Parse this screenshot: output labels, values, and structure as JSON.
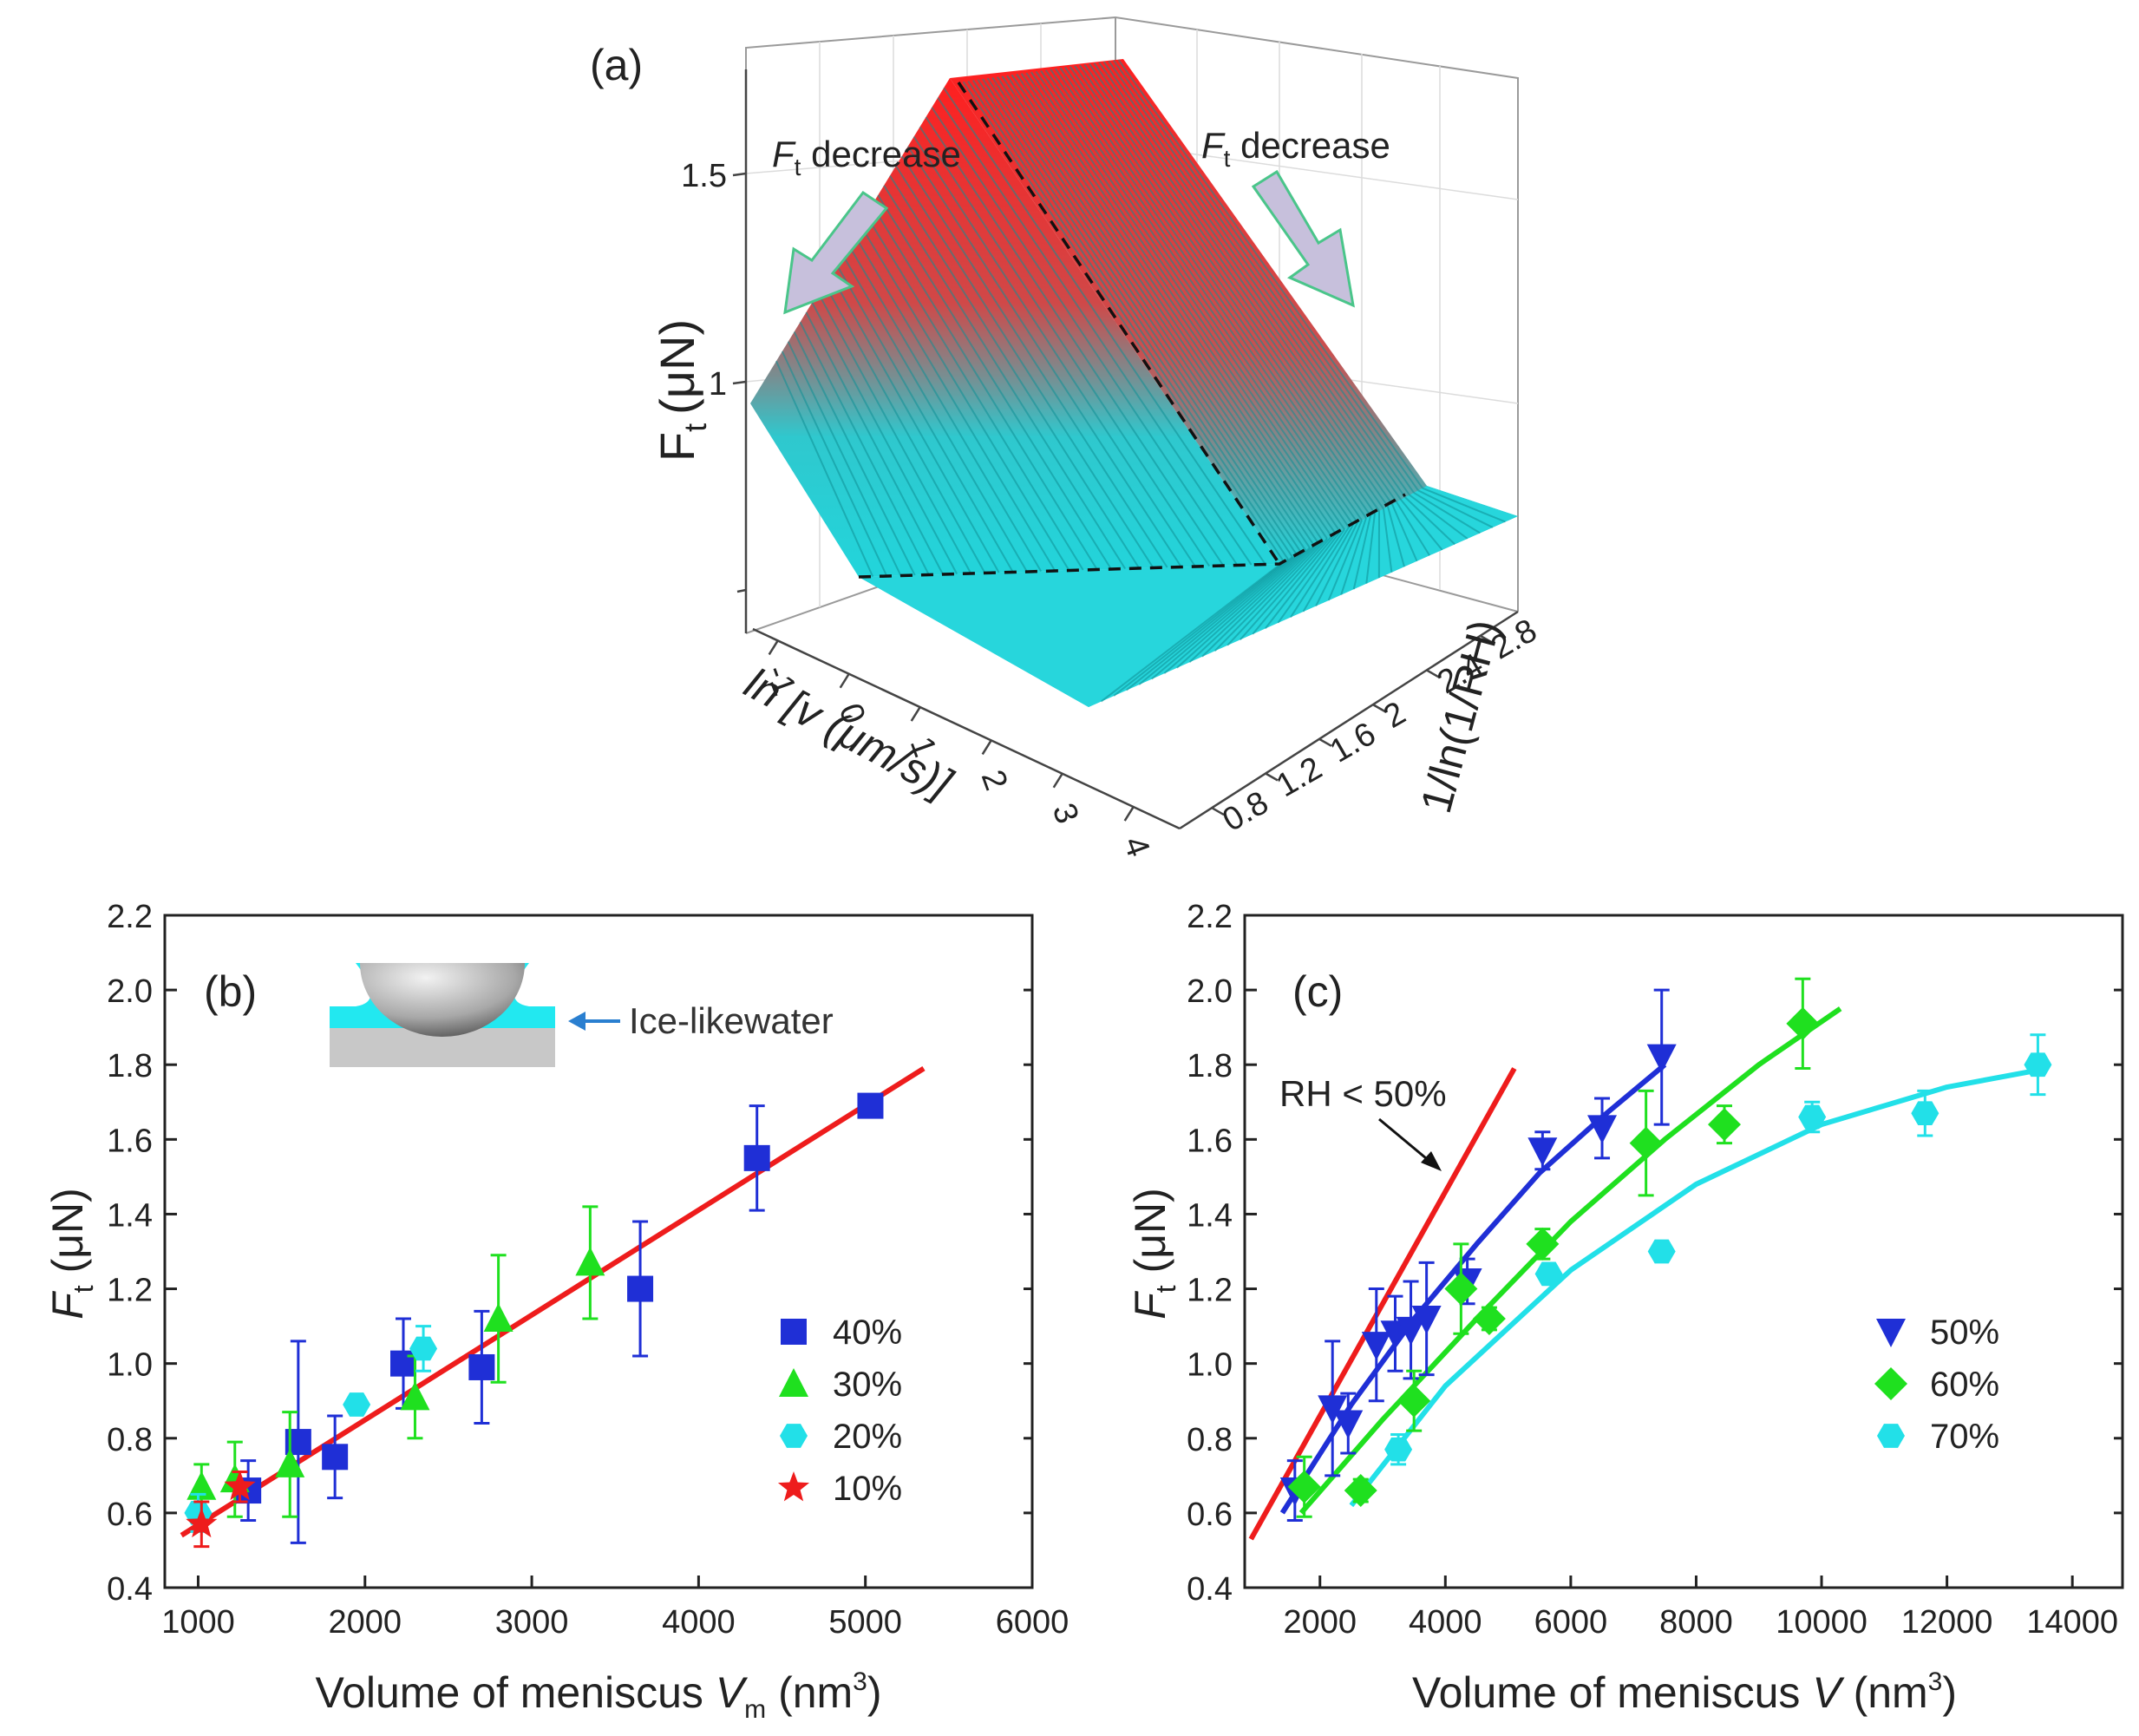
{
  "figure": {
    "panel_a_label": "(a)",
    "panel_b_label": "(b)",
    "panel_c_label": "(c)"
  },
  "colors": {
    "blue": "#1f2fd6",
    "green": "#1fe01f",
    "cyan": "#22e0e8",
    "red": "#ee1c1c",
    "surface_top": "#ff2020",
    "surface_bottom": "#22d5db"
  },
  "chart_data": [
    {
      "type": "surface3d",
      "panel": "a",
      "zlabel": "F",
      "zlabel_sub": "t",
      "zlabel_unit": "(μN)",
      "xlabel": "ln [v (μm/s)]",
      "ylabel": "1/ln(1/RH)",
      "z_ticks": [
        "1",
        "1.5"
      ],
      "x_ticks": [
        "-1",
        "0",
        "1",
        "2",
        "3",
        "4"
      ],
      "y_ticks": [
        "0.8",
        "1.2",
        "1.6",
        "2",
        "2.4",
        "2.8"
      ],
      "annotations": [
        {
          "symbol": "F",
          "sub": "t",
          "text": " decrease",
          "direction": "left"
        },
        {
          "symbol": "F",
          "sub": "t",
          "text": " decrease",
          "direction": "right"
        }
      ]
    },
    {
      "type": "scatter",
      "panel": "b",
      "xlabel": "Volume of meniscus ",
      "xlabel_var": "V",
      "xlabel_sub": "m",
      "xlabel_unit": " (nm",
      "xlabel_sup": "3",
      "xlabel_end": ")",
      "ylabel": "F",
      "ylabel_sub": "t",
      "ylabel_unit": " (μN)",
      "xlim": [
        800,
        6000
      ],
      "ylim": [
        0.4,
        2.2
      ],
      "x_ticks": [
        1000,
        2000,
        3000,
        4000,
        5000,
        6000
      ],
      "y_ticks": [
        "0.4",
        "0.6",
        "0.8",
        "1.0",
        "1.2",
        "1.4",
        "1.6",
        "1.8",
        "2.0",
        "2.2"
      ],
      "inset_label": "Ice-likewater",
      "series": [
        {
          "name": "40%",
          "marker": "square",
          "color": "#1f2fd6",
          "points": [
            [
              1300,
              0.66,
              0.08
            ],
            [
              1600,
              0.79,
              0.27
            ],
            [
              1820,
              0.75,
              0.11
            ],
            [
              2230,
              1.0,
              0.12
            ],
            [
              2700,
              0.99,
              0.15
            ],
            [
              3650,
              1.2,
              0.18
            ],
            [
              4350,
              1.55,
              0.14
            ],
            [
              5030,
              1.69,
              0.03
            ]
          ]
        },
        {
          "name": "30%",
          "marker": "triangle-up",
          "color": "#1fe01f",
          "points": [
            [
              1020,
              0.67,
              0.06
            ],
            [
              1220,
              0.69,
              0.1
            ],
            [
              1550,
              0.73,
              0.14
            ],
            [
              2300,
              0.91,
              0.11
            ],
            [
              2800,
              1.12,
              0.17
            ],
            [
              3350,
              1.27,
              0.15
            ]
          ]
        },
        {
          "name": "20%",
          "marker": "hexagon",
          "color": "#22e0e8",
          "points": [
            [
              1000,
              0.6,
              0.05
            ],
            [
              1950,
              0.89,
              0.02
            ],
            [
              2350,
              1.04,
              0.06
            ]
          ]
        },
        {
          "name": "10%",
          "marker": "star",
          "color": "#ee1c1c",
          "points": [
            [
              1020,
              0.57,
              0.06
            ],
            [
              1250,
              0.67,
              0.04
            ]
          ]
        }
      ],
      "fit_line": {
        "color": "#ee1c1c",
        "x": [
          900,
          5350
        ],
        "y": [
          0.54,
          1.79
        ]
      }
    },
    {
      "type": "scatter",
      "panel": "c",
      "xlabel": "Volume of meniscus ",
      "xlabel_var": "V",
      "xlabel_unit": " (nm",
      "xlabel_sup": "3",
      "xlabel_end": ")",
      "ylabel": "F",
      "ylabel_sub": "t",
      "ylabel_unit": " (μN)",
      "xlim": [
        800,
        14800
      ],
      "ylim": [
        0.4,
        2.2
      ],
      "x_ticks": [
        2000,
        4000,
        6000,
        8000,
        10000,
        12000,
        14000
      ],
      "y_ticks": [
        "0.4",
        "0.6",
        "0.8",
        "1.0",
        "1.2",
        "1.4",
        "1.6",
        "1.8",
        "2.0",
        "2.2"
      ],
      "annotation": "RH < 50%",
      "series": [
        {
          "name": "50%",
          "marker": "triangle-down",
          "color": "#1f2fd6",
          "points": [
            [
              1600,
              0.66,
              0.08
            ],
            [
              2200,
              0.88,
              0.18
            ],
            [
              2450,
              0.84,
              0.08
            ],
            [
              2900,
              1.05,
              0.15
            ],
            [
              3200,
              1.08,
              0.1
            ],
            [
              3450,
              1.09,
              0.13
            ],
            [
              3700,
              1.12,
              0.15
            ],
            [
              4350,
              1.22,
              0.06
            ],
            [
              5550,
              1.57,
              0.05
            ],
            [
              6500,
              1.63,
              0.08
            ],
            [
              7450,
              1.82,
              0.18
            ]
          ]
        },
        {
          "name": "60%",
          "marker": "diamond",
          "color": "#1fe01f",
          "points": [
            [
              1750,
              0.67,
              0.08
            ],
            [
              2650,
              0.66,
              0.03
            ],
            [
              3500,
              0.9,
              0.08
            ],
            [
              4250,
              1.2,
              0.12
            ],
            [
              4700,
              1.12,
              0.03
            ],
            [
              5550,
              1.32,
              0.04
            ],
            [
              7200,
              1.59,
              0.14
            ],
            [
              8450,
              1.64,
              0.05
            ],
            [
              9700,
              1.91,
              0.12
            ]
          ]
        },
        {
          "name": "70%",
          "marker": "hexagon",
          "color": "#22e0e8",
          "points": [
            [
              3250,
              0.77,
              0.04
            ],
            [
              5650,
              1.24,
              0.02
            ],
            [
              7450,
              1.3,
              0.02
            ],
            [
              9850,
              1.66,
              0.04
            ],
            [
              11650,
              1.67,
              0.06
            ],
            [
              13450,
              1.8,
              0.08
            ]
          ]
        }
      ],
      "fits": [
        {
          "name": "RH < 50%",
          "color": "#ee1c1c",
          "x": [
            900,
            5100
          ],
          "y": [
            0.53,
            1.79
          ]
        },
        {
          "name": "50%",
          "color": "#1f2fd6",
          "x": [
            1400,
            2500,
            3500,
            4500,
            5500,
            6500,
            7500
          ],
          "y": [
            0.6,
            0.89,
            1.12,
            1.32,
            1.51,
            1.66,
            1.8
          ]
        },
        {
          "name": "60%",
          "color": "#1fe01f",
          "x": [
            1700,
            3000,
            4500,
            6000,
            7500,
            9000,
            10300
          ],
          "y": [
            0.6,
            0.85,
            1.12,
            1.38,
            1.6,
            1.8,
            1.95
          ]
        },
        {
          "name": "70%",
          "color": "#22e0e8",
          "x": [
            2500,
            4000,
            6000,
            8000,
            10000,
            12000,
            13600
          ],
          "y": [
            0.62,
            0.94,
            1.25,
            1.48,
            1.64,
            1.74,
            1.79
          ]
        }
      ]
    }
  ]
}
